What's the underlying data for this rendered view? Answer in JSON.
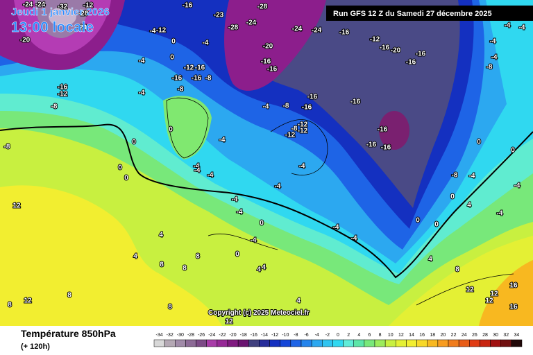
{
  "header": {
    "date": "Jeudi 1 janvier 2026",
    "time": "13:00 locale",
    "run": "Run GFS 12 Z du Samedi 27 décembre 2025"
  },
  "copyright": "Copyright (c) 2025 Meteociel.fr",
  "footer": {
    "title": "Température 850hPa",
    "subtitle": "(+ 120h)"
  },
  "legend": {
    "values": [
      -34,
      -32,
      -30,
      -28,
      -26,
      -24,
      -22,
      -20,
      -18,
      -16,
      -14,
      -12,
      -10,
      -8,
      -6,
      -4,
      -2,
      0,
      2,
      4,
      6,
      8,
      10,
      12,
      14,
      16,
      18,
      20,
      22,
      24,
      26,
      28,
      30,
      32,
      34
    ],
    "colors": [
      "#d8d8d8",
      "#b4a8b4",
      "#a08aa8",
      "#8c6a96",
      "#7c4a86",
      "#a83ca8",
      "#962896",
      "#801a80",
      "#6a1470",
      "#40407e",
      "#262c9a",
      "#1430c0",
      "#1446d8",
      "#1e64e6",
      "#2484ec",
      "#2ca8f0",
      "#30c4f0",
      "#30d8f0",
      "#60ecd8",
      "#5ce6a8",
      "#78e87a",
      "#9cec5c",
      "#c8f040",
      "#e4f034",
      "#f2ee30",
      "#f8d828",
      "#f8b820",
      "#f89c20",
      "#f07c1c",
      "#e85c18",
      "#e03c14",
      "#c82410",
      "#a01010",
      "#701010",
      "#200808"
    ]
  },
  "contour_labels": [
    -24,
    -24,
    -32,
    -12,
    -28,
    -20,
    -24,
    -12,
    -4,
    0,
    -4,
    0,
    -12,
    -16,
    -4,
    -16,
    -16,
    -8,
    -8,
    -16,
    -23,
    -28,
    -28,
    -24,
    -24,
    -24,
    -20,
    -16,
    -16,
    -16,
    -12,
    -16,
    -20,
    -16,
    -16,
    -16,
    -12,
    -8,
    -4,
    -16,
    -16,
    -16,
    -4,
    -8,
    -16,
    -16,
    -16,
    0,
    -4,
    -12,
    -12,
    -8,
    -12,
    -8,
    0,
    0,
    0,
    -4,
    -4,
    -4,
    -4,
    -4,
    -4,
    0,
    -4,
    12,
    4,
    4,
    8,
    8,
    8,
    0,
    -4,
    4,
    4,
    4,
    8,
    12,
    12,
    8,
    8,
    -4,
    -4,
    0,
    0,
    0,
    -8,
    4,
    -4,
    0,
    -4,
    -4,
    -4,
    -4,
    -8,
    0,
    -4,
    -4,
    4,
    12,
    16,
    16,
    12,
    8,
    12
  ]
}
